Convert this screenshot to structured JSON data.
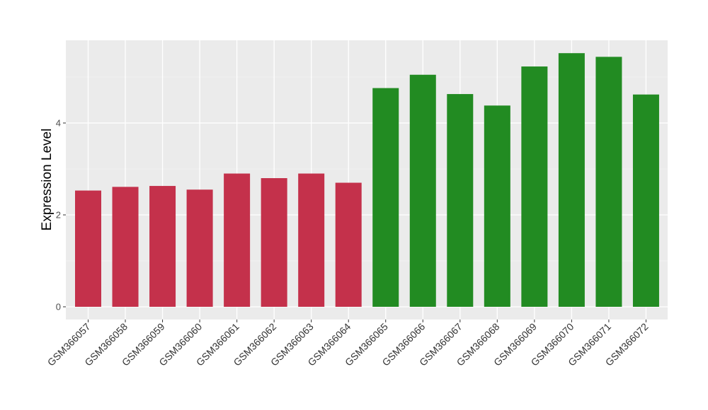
{
  "chart_data": {
    "type": "bar",
    "title": "",
    "xlabel": "",
    "ylabel": "Expression Level",
    "ylim": [
      -0.23,
      5.73
    ],
    "yticks": [
      0,
      2,
      4
    ],
    "grid": true,
    "legend": "none",
    "categories": [
      "GSM366057",
      "GSM366058",
      "GSM366059",
      "GSM366060",
      "GSM366061",
      "GSM366062",
      "GSM366063",
      "GSM366064",
      "GSM366065",
      "GSM366066",
      "GSM366067",
      "GSM366068",
      "GSM366069",
      "GSM366070",
      "GSM366071",
      "GSM366072"
    ],
    "values": [
      2.53,
      2.61,
      2.63,
      2.55,
      2.9,
      2.8,
      2.9,
      2.7,
      4.76,
      5.05,
      4.63,
      4.38,
      5.23,
      5.52,
      5.44,
      4.62
    ],
    "bar_colors": [
      "#c4314b",
      "#c4314b",
      "#c4314b",
      "#c4314b",
      "#c4314b",
      "#c4314b",
      "#c4314b",
      "#c4314b",
      "#228b22",
      "#228b22",
      "#228b22",
      "#228b22",
      "#228b22",
      "#228b22",
      "#228b22",
      "#228b22"
    ]
  }
}
